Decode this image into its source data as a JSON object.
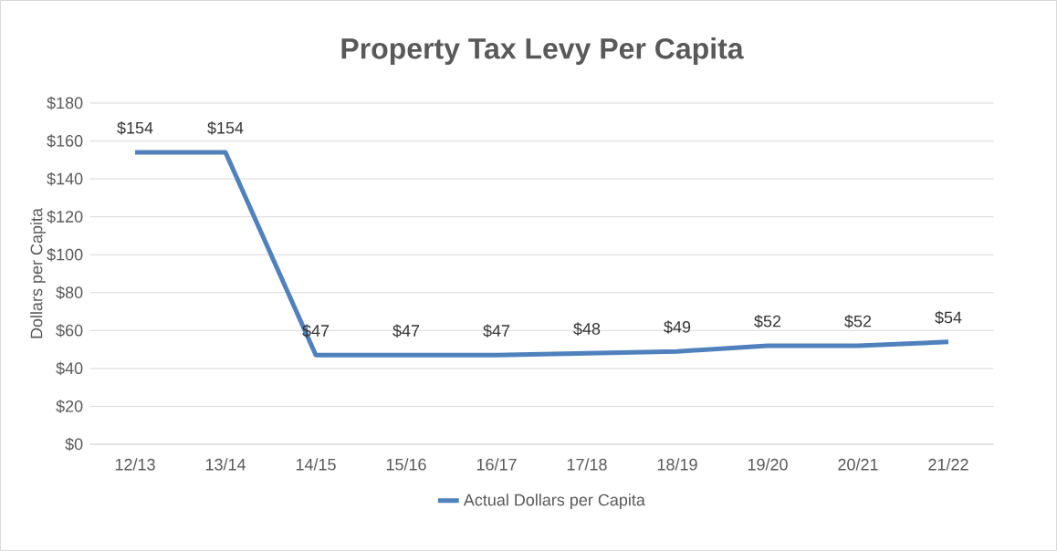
{
  "chart_data": {
    "type": "line",
    "title": "Property Tax Levy Per Capita",
    "ylabel": "Dollars per Capita",
    "categories": [
      "12/13",
      "13/14",
      "14/15",
      "15/16",
      "16/17",
      "17/18",
      "18/19",
      "19/20",
      "20/21",
      "21/22"
    ],
    "series": [
      {
        "name": "Actual Dollars per Capita",
        "color": "#4f81bd",
        "values": [
          154,
          154,
          47,
          47,
          47,
          48,
          49,
          52,
          52,
          54
        ],
        "value_labels": [
          "$154",
          "$154",
          "$47",
          "$47",
          "$47",
          "$48",
          "$49",
          "$52",
          "$52",
          "$54"
        ]
      }
    ],
    "ylim": [
      0,
      180
    ],
    "yticks": [
      {
        "value": 0,
        "label": "$0"
      },
      {
        "value": 20,
        "label": "$20"
      },
      {
        "value": 40,
        "label": "$40"
      },
      {
        "value": 60,
        "label": "$60"
      },
      {
        "value": 80,
        "label": "$80"
      },
      {
        "value": 100,
        "label": "$100"
      },
      {
        "value": 120,
        "label": "$120"
      },
      {
        "value": 140,
        "label": "$140"
      },
      {
        "value": 160,
        "label": "$160"
      },
      {
        "value": 180,
        "label": "$180"
      }
    ],
    "grid": "y",
    "legend": "bottom",
    "marker": "none"
  }
}
